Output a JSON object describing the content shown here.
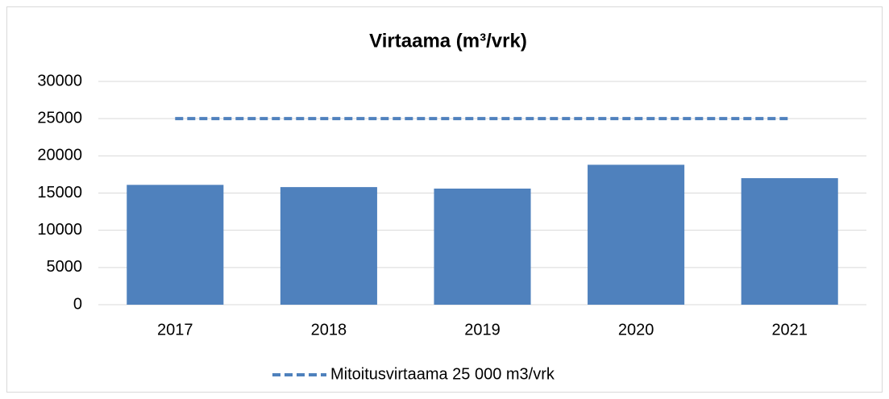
{
  "chart_data": {
    "type": "bar",
    "title": "Virtaama (m³/vrk)",
    "categories": [
      "2017",
      "2018",
      "2019",
      "2020",
      "2021"
    ],
    "series": [
      {
        "type": "bar",
        "color": "#4f81bd",
        "values": [
          16100,
          15800,
          15600,
          18800,
          17000
        ]
      },
      {
        "type": "line",
        "name": "Mitoitusvirtaama 25 000 m3/vrk",
        "color": "#4f81bd",
        "values": [
          25000,
          25000,
          25000,
          25000,
          25000
        ]
      }
    ],
    "ylim": [
      0,
      30000
    ],
    "yticks": [
      0,
      5000,
      10000,
      15000,
      20000,
      25000,
      30000
    ],
    "grid": true,
    "legend": "bottom"
  }
}
